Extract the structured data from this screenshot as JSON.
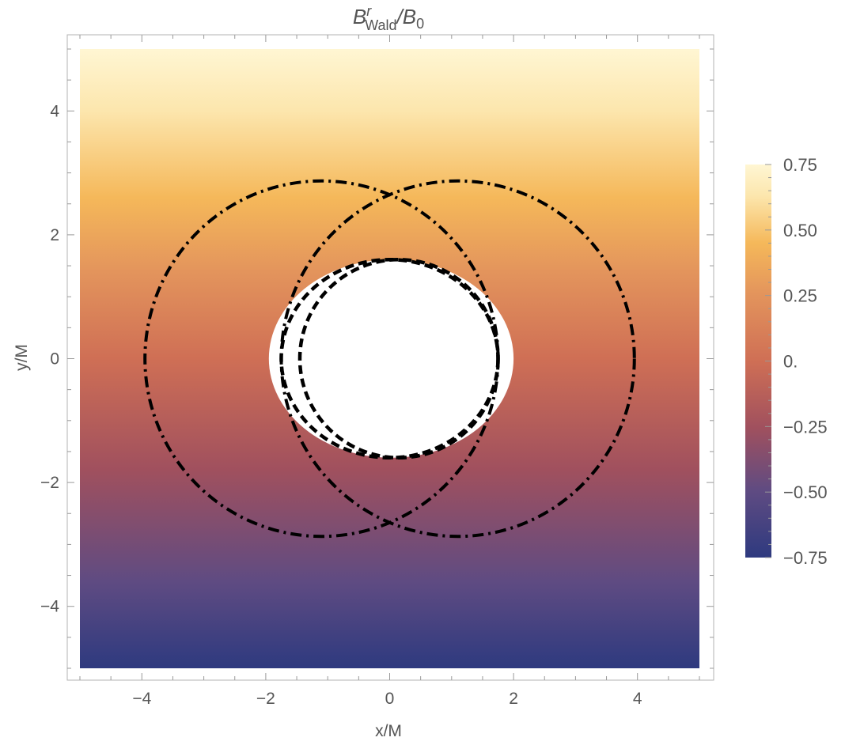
{
  "chart_data": {
    "type": "heatmap",
    "title": {
      "symbol": "B",
      "superscript": "r",
      "subscript": "Wald",
      "denominator_symbol": "/B",
      "denominator_subscript": "0"
    },
    "xlabel": "x/M",
    "ylabel": "y/M",
    "xlim": [
      -5,
      5
    ],
    "ylim": [
      -5,
      5
    ],
    "x_ticks": [
      "-4",
      "-2",
      "0",
      "2",
      "4"
    ],
    "y_ticks": [
      "-4",
      "-2",
      "0",
      "2",
      "4"
    ],
    "x_tick_values": [
      -4,
      -2,
      0,
      2,
      4
    ],
    "y_tick_values": [
      -4,
      -2,
      0,
      2,
      4
    ],
    "colorbar": {
      "range": [
        -0.75,
        0.75
      ],
      "ticks": [
        "0.75",
        "0.50",
        "0.25",
        "0.",
        "-0.25",
        "-0.50",
        "-0.75"
      ],
      "tick_values": [
        0.75,
        0.5,
        0.25,
        0,
        -0.25,
        -0.5,
        -0.75
      ],
      "colors": [
        "#2e3a7f",
        "#5f4b82",
        "#a0505e",
        "#cf6f55",
        "#e3945c",
        "#f5b85a",
        "#fce6ad",
        "#fff6d3"
      ]
    },
    "field": {
      "description_values": "B_r/B0 increases from about -0.75 at bottom to about 0.75 at top",
      "min": -0.75,
      "max": 0.75
    },
    "excised_region": {
      "center": [
        0,
        0
      ],
      "x_extent": [
        -1.95,
        2.0
      ],
      "y_extent": [
        -1.6,
        1.6
      ]
    },
    "curves": [
      {
        "style": "dashed",
        "shape": "ellipse",
        "center": [
          0.0,
          0.0
        ],
        "rx": 1.75,
        "ry": 1.6
      },
      {
        "style": "dashed",
        "shape": "ellipse",
        "center": [
          0.15,
          0.0
        ],
        "rx": 1.6,
        "ry": 1.6
      },
      {
        "style": "dot-dashed",
        "shape": "ellipse",
        "center": [
          -1.1,
          0.0
        ],
        "rx": 2.85,
        "ry": 2.87
      },
      {
        "style": "dot-dashed",
        "shape": "ellipse",
        "center": [
          1.1,
          0.0
        ],
        "rx": 2.85,
        "ry": 2.87
      }
    ]
  }
}
